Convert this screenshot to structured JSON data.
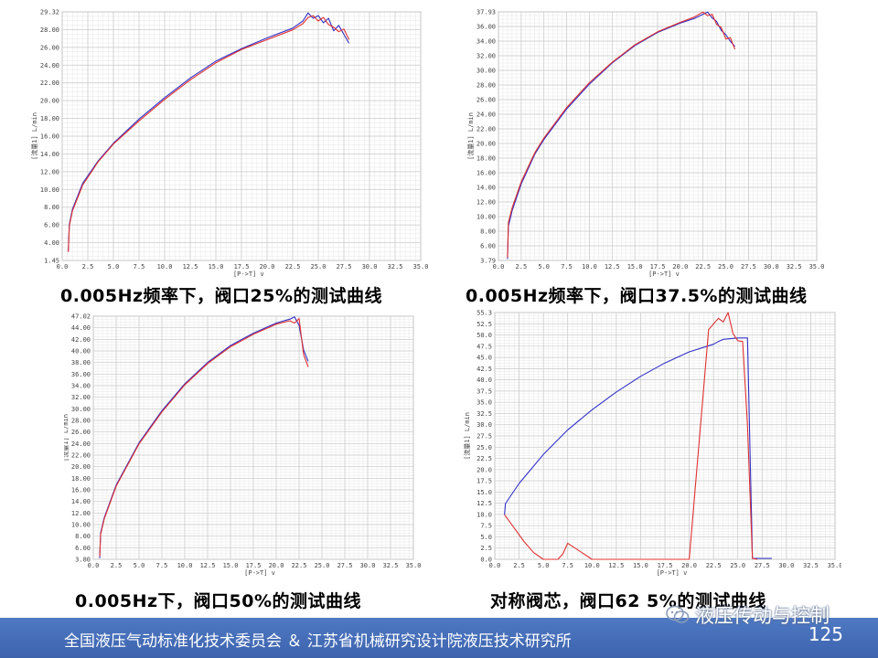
{
  "captions": [
    "0.005Hz频率下，阀口25%的测试曲线",
    "0.005Hz频率下，阀口37.5%的测试曲线",
    "0.005Hz下，阀口50%的测试曲线",
    "对称阀芯，阀口62 5%的测试曲线"
  ],
  "footer": {
    "text": "全国液压气动标准化技术委员会 ＆ 江苏省机械研究设计院液压技术研究所",
    "page_number": "125"
  },
  "watermark": {
    "text": "液压传动与控制",
    "icon": "wechat-icon"
  },
  "colors": {
    "series_a": "#3030c8",
    "series_b": "#e03030",
    "footer": "#4a72be",
    "grid": "#c8c8c8"
  },
  "chart_data": [
    {
      "type": "line",
      "title": "",
      "xlabel": "[P->T] v",
      "ylabel": "[流量1] L/min",
      "xlim": [
        0,
        35
      ],
      "ylim": [
        1.45,
        29.32
      ],
      "x_ticks": [
        "0.0",
        "2.5",
        "5.0",
        "7.5",
        "10.0",
        "12.5",
        "15.0",
        "17.5",
        "20.0",
        "22.5",
        "25.0",
        "27.5",
        "30.0",
        "32.5",
        "35.0"
      ],
      "y_ticks": [
        "29.32",
        "28.00",
        "26.00",
        "24.00",
        "22.00",
        "20.00",
        "18.00",
        "16.00",
        "14.00",
        "12.00",
        "10.00",
        "8.00",
        "6.00",
        "4.00",
        "1.45"
      ],
      "series": [
        {
          "x": [
            0.6,
            0.7,
            1.0,
            2.0,
            3.5,
            5.0,
            7.5,
            10.0,
            12.5,
            15.0,
            17.5,
            20.0,
            22.5,
            23.5,
            24.0,
            24.5,
            25.0,
            25.5,
            26.0,
            26.5,
            27.0,
            27.5,
            28.0
          ],
          "y": [
            2.5,
            5.5,
            7.2,
            10.1,
            12.6,
            14.6,
            17.3,
            19.7,
            21.9,
            23.8,
            25.2,
            26.4,
            27.5,
            28.3,
            29.2,
            28.6,
            28.9,
            28.1,
            28.6,
            27.2,
            27.8,
            26.8,
            25.8
          ]
        },
        {
          "x": [
            0.6,
            0.7,
            1.0,
            2.0,
            3.5,
            5.0,
            7.5,
            10.0,
            12.5,
            15.0,
            17.5,
            20.0,
            22.5,
            23.5,
            24.0,
            24.5,
            25.0,
            25.5,
            26.0,
            26.5,
            27.0,
            27.5,
            28.0
          ],
          "y": [
            2.4,
            5.3,
            7.0,
            9.9,
            12.5,
            14.5,
            17.1,
            19.5,
            21.7,
            23.6,
            25.1,
            26.2,
            27.3,
            28.0,
            28.7,
            28.9,
            28.3,
            28.7,
            27.9,
            27.6,
            27.1,
            27.4,
            26.2
          ]
        }
      ]
    },
    {
      "type": "line",
      "title": "",
      "xlabel": "[P->T] v",
      "ylabel": "[流量1] L/min",
      "xlim": [
        0,
        35
      ],
      "ylim": [
        3.79,
        37.93
      ],
      "x_ticks": [
        "0.0",
        "2.5",
        "5.0",
        "7.5",
        "10.0",
        "12.5",
        "15.0",
        "17.5",
        "20.0",
        "22.5",
        "25.0",
        "27.5",
        "30.0",
        "32.5",
        "35.0"
      ],
      "y_ticks": [
        "37.93",
        "36.00",
        "34.00",
        "32.00",
        "30.00",
        "28.00",
        "26.00",
        "24.00",
        "22.00",
        "20.00",
        "18.00",
        "16.00",
        "14.00",
        "12.00",
        "10.00",
        "8.00",
        "6.00",
        "3.79"
      ],
      "series": [
        {
          "x": [
            1.0,
            1.1,
            1.5,
            2.5,
            4.0,
            5.0,
            7.5,
            10.0,
            12.5,
            15.0,
            17.5,
            20.0,
            21.5,
            22.5,
            23.0,
            23.5,
            24.0,
            24.5,
            25.0,
            25.5,
            26.0
          ],
          "y": [
            4.0,
            8.5,
            10.6,
            14.3,
            18.4,
            20.4,
            24.6,
            28.0,
            30.9,
            33.3,
            35.1,
            36.4,
            37.0,
            37.6,
            37.9,
            37.1,
            36.6,
            35.4,
            34.8,
            33.9,
            33.2
          ]
        },
        {
          "x": [
            1.0,
            1.1,
            1.5,
            2.5,
            4.0,
            5.0,
            7.5,
            10.0,
            12.5,
            15.0,
            17.5,
            20.0,
            21.5,
            22.5,
            23.0,
            23.5,
            24.0,
            24.5,
            25.0,
            25.5,
            26.0
          ],
          "y": [
            4.2,
            9.0,
            11.0,
            14.6,
            18.6,
            20.6,
            24.8,
            28.2,
            31.0,
            33.4,
            35.2,
            36.5,
            37.2,
            37.9,
            37.4,
            37.6,
            36.2,
            35.8,
            34.2,
            34.4,
            32.8
          ]
        }
      ]
    },
    {
      "type": "line",
      "title": "",
      "xlabel": "[P->T] v",
      "ylabel": "[流量1] L/min",
      "xlim": [
        0,
        35
      ],
      "ylim": [
        3.8,
        47.02
      ],
      "x_ticks": [
        "0.0",
        "2.5",
        "5.0",
        "7.5",
        "10.0",
        "12.5",
        "15.0",
        "17.5",
        "20.0",
        "22.5",
        "25.0",
        "27.5",
        "30.0",
        "32.5",
        "35.0"
      ],
      "y_ticks": [
        "47.02",
        "44.00",
        "42.00",
        "40.00",
        "38.00",
        "36.00",
        "34.00",
        "32.00",
        "30.00",
        "28.00",
        "26.00",
        "24.00",
        "22.00",
        "20.00",
        "18.00",
        "16.00",
        "14.00",
        "12.00",
        "10.00",
        "8.00",
        "6.00",
        "3.80"
      ],
      "series": [
        {
          "x": [
            0.7,
            0.8,
            1.2,
            2.5,
            5.0,
            7.5,
            10.0,
            12.5,
            15.0,
            17.5,
            20.0,
            21.5,
            22.0,
            22.5,
            23.0,
            23.5
          ],
          "y": [
            4.0,
            8.5,
            11.2,
            17.0,
            24.5,
            30.2,
            35.0,
            38.8,
            41.8,
            44.0,
            45.8,
            46.5,
            46.9,
            45.4,
            41.0,
            39.0
          ]
        },
        {
          "x": [
            0.7,
            0.8,
            1.2,
            2.5,
            5.0,
            7.5,
            10.0,
            12.5,
            15.0,
            17.5,
            20.0,
            21.5,
            22.0,
            22.5,
            23.0,
            23.5
          ],
          "y": [
            4.3,
            8.2,
            11.0,
            16.8,
            24.3,
            30.0,
            34.8,
            38.6,
            41.6,
            43.8,
            45.6,
            46.2,
            45.8,
            46.6,
            40.2,
            38.0
          ]
        }
      ]
    },
    {
      "type": "line",
      "title": "",
      "xlabel": "[P->T] v",
      "ylabel": "[流量1] L/min",
      "xlim": [
        0,
        35
      ],
      "ylim": [
        0,
        55.3
      ],
      "x_ticks": [
        "0.0",
        "2.5",
        "5.0",
        "7.5",
        "10.0",
        "12.5",
        "15.0",
        "17.5",
        "20.0",
        "22.5",
        "25.0",
        "27.5",
        "30.0",
        "32.5",
        "35.0"
      ],
      "y_ticks": [
        "55.3",
        "52.5",
        "50.0",
        "47.5",
        "45.0",
        "42.5",
        "40.0",
        "37.5",
        "35.0",
        "32.5",
        "30.0",
        "27.5",
        "25.0",
        "22.5",
        "20.0",
        "17.5",
        "15.0",
        "12.5",
        "10.0",
        "7.5",
        "5.0",
        "2.5",
        "0.0"
      ],
      "series": [
        {
          "x": [
            1.0,
            1.1,
            2.5,
            5.0,
            7.5,
            10.0,
            12.5,
            15.0,
            17.5,
            20.0,
            22.5,
            23.0,
            23.5,
            24.0,
            24.5,
            25.0,
            25.5,
            26.0,
            26.5,
            27.0,
            27.5,
            28.0,
            28.5
          ],
          "y": [
            10.0,
            12.5,
            17.0,
            23.5,
            29.0,
            33.5,
            37.5,
            41.0,
            44.0,
            46.5,
            48.2,
            48.8,
            49.3,
            49.4,
            49.5,
            49.6,
            49.6,
            49.6,
            0.2,
            0.2,
            0.2,
            0.2,
            0.2
          ]
        },
        {
          "x": [
            1.0,
            2.0,
            3.0,
            4.0,
            5.0,
            5.5,
            6.0,
            6.5,
            7.0,
            7.5,
            10.0,
            12.5,
            15.0,
            17.5,
            20.0,
            22.0,
            23.0,
            23.5,
            24.0,
            24.5,
            25.0,
            25.5,
            26.0,
            26.5,
            27.0
          ],
          "y": [
            10.0,
            7.0,
            4.0,
            1.5,
            0.0,
            0.0,
            0.0,
            0.0,
            1.2,
            3.6,
            0.0,
            0.0,
            0.0,
            0.0,
            0.0,
            51.5,
            54.0,
            53.2,
            55.3,
            50.6,
            49.0,
            48.8,
            30.0,
            0.2,
            0.0
          ]
        }
      ]
    }
  ]
}
